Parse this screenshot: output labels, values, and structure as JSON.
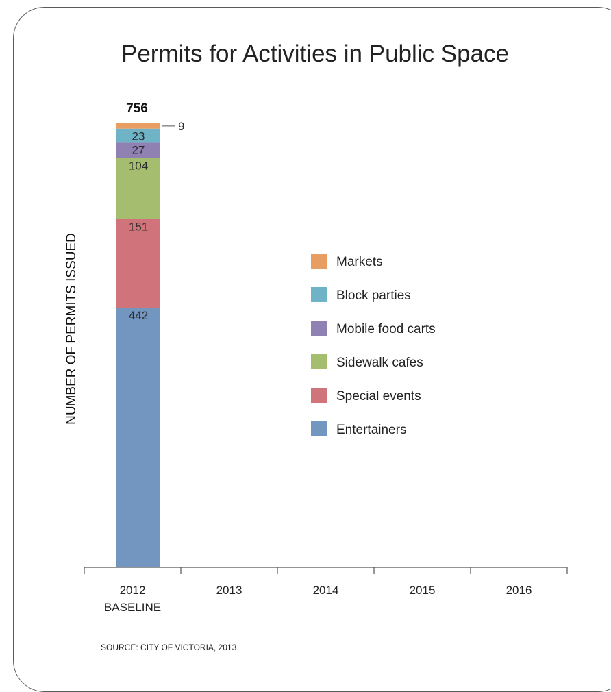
{
  "chart_data": {
    "type": "bar",
    "stacked": true,
    "title": "Permits for Activities in Public Space",
    "ylabel": "NUMBER OF PERMITS ISSUED",
    "xlabel": "",
    "categories": [
      {
        "line1": "2012",
        "line2": "BASELINE"
      },
      {
        "line1": "2013",
        "line2": ""
      },
      {
        "line1": "2014",
        "line2": ""
      },
      {
        "line1": "2015",
        "line2": ""
      },
      {
        "line1": "2016",
        "line2": ""
      }
    ],
    "ylim": [
      0,
      756
    ],
    "totals": [
      "756",
      "",
      "",
      "",
      ""
    ],
    "series": [
      {
        "name": "Entertainers",
        "color": "#7396c0",
        "values": [
          442,
          null,
          null,
          null,
          null
        ]
      },
      {
        "name": "Special events",
        "color": "#d0737a",
        "values": [
          151,
          null,
          null,
          null,
          null
        ]
      },
      {
        "name": "Sidewalk cafes",
        "color": "#a5bd6f",
        "values": [
          104,
          null,
          null,
          null,
          null
        ]
      },
      {
        "name": "Mobile food carts",
        "color": "#8f82b3",
        "values": [
          27,
          null,
          null,
          null,
          null
        ]
      },
      {
        "name": "Block parties",
        "color": "#6fb3c6",
        "values": [
          23,
          null,
          null,
          null,
          null
        ]
      },
      {
        "name": "Markets",
        "color": "#e89d63",
        "values": [
          9,
          null,
          null,
          null,
          null
        ]
      }
    ],
    "legend_order": [
      "Markets",
      "Block parties",
      "Mobile food carts",
      "Sidewalk cafes",
      "Special events",
      "Entertainers"
    ],
    "legend_position": "right",
    "grid": false
  },
  "source": {
    "prefix": "SOURCE:",
    "text": " CITY OF VICTORIA, 2013"
  }
}
